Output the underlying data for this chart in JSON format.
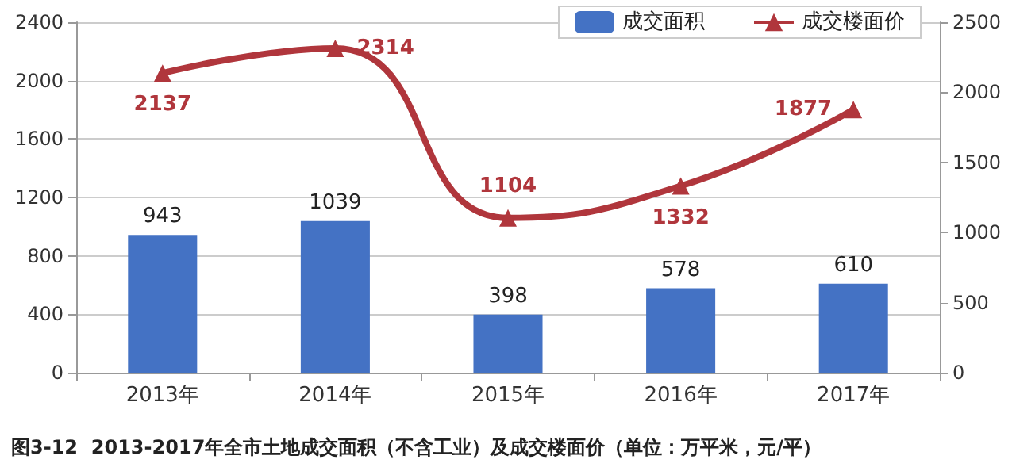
{
  "chart_data": {
    "type": "bar",
    "title": "图3-12  2013-2017年全市土地成交面积（不含工业）及成交楼面价（单位：万平米，元/平）",
    "categories": [
      "2013年",
      "2014年",
      "2015年",
      "2016年",
      "2017年"
    ],
    "series": [
      {
        "name": "成交面积",
        "color": "#4472c4",
        "values": [
          943,
          1039,
          398,
          578,
          610
        ]
      },
      {
        "name": "成交楼面价",
        "type": "line",
        "axis": "y2",
        "color": "#b0363c",
        "marker": "triangle",
        "values": [
          2137,
          2314,
          1104,
          1332,
          1877
        ]
      }
    ],
    "ylim": [
      0,
      2400
    ],
    "yticks": [
      0,
      400,
      800,
      1200,
      1600,
      2000,
      2400
    ],
    "y2lim": [
      0,
      2500
    ],
    "y2ticks": [
      0,
      500,
      1000,
      1500,
      2000,
      2500
    ],
    "grid": "y",
    "legend": "top right",
    "data_labels": true
  }
}
